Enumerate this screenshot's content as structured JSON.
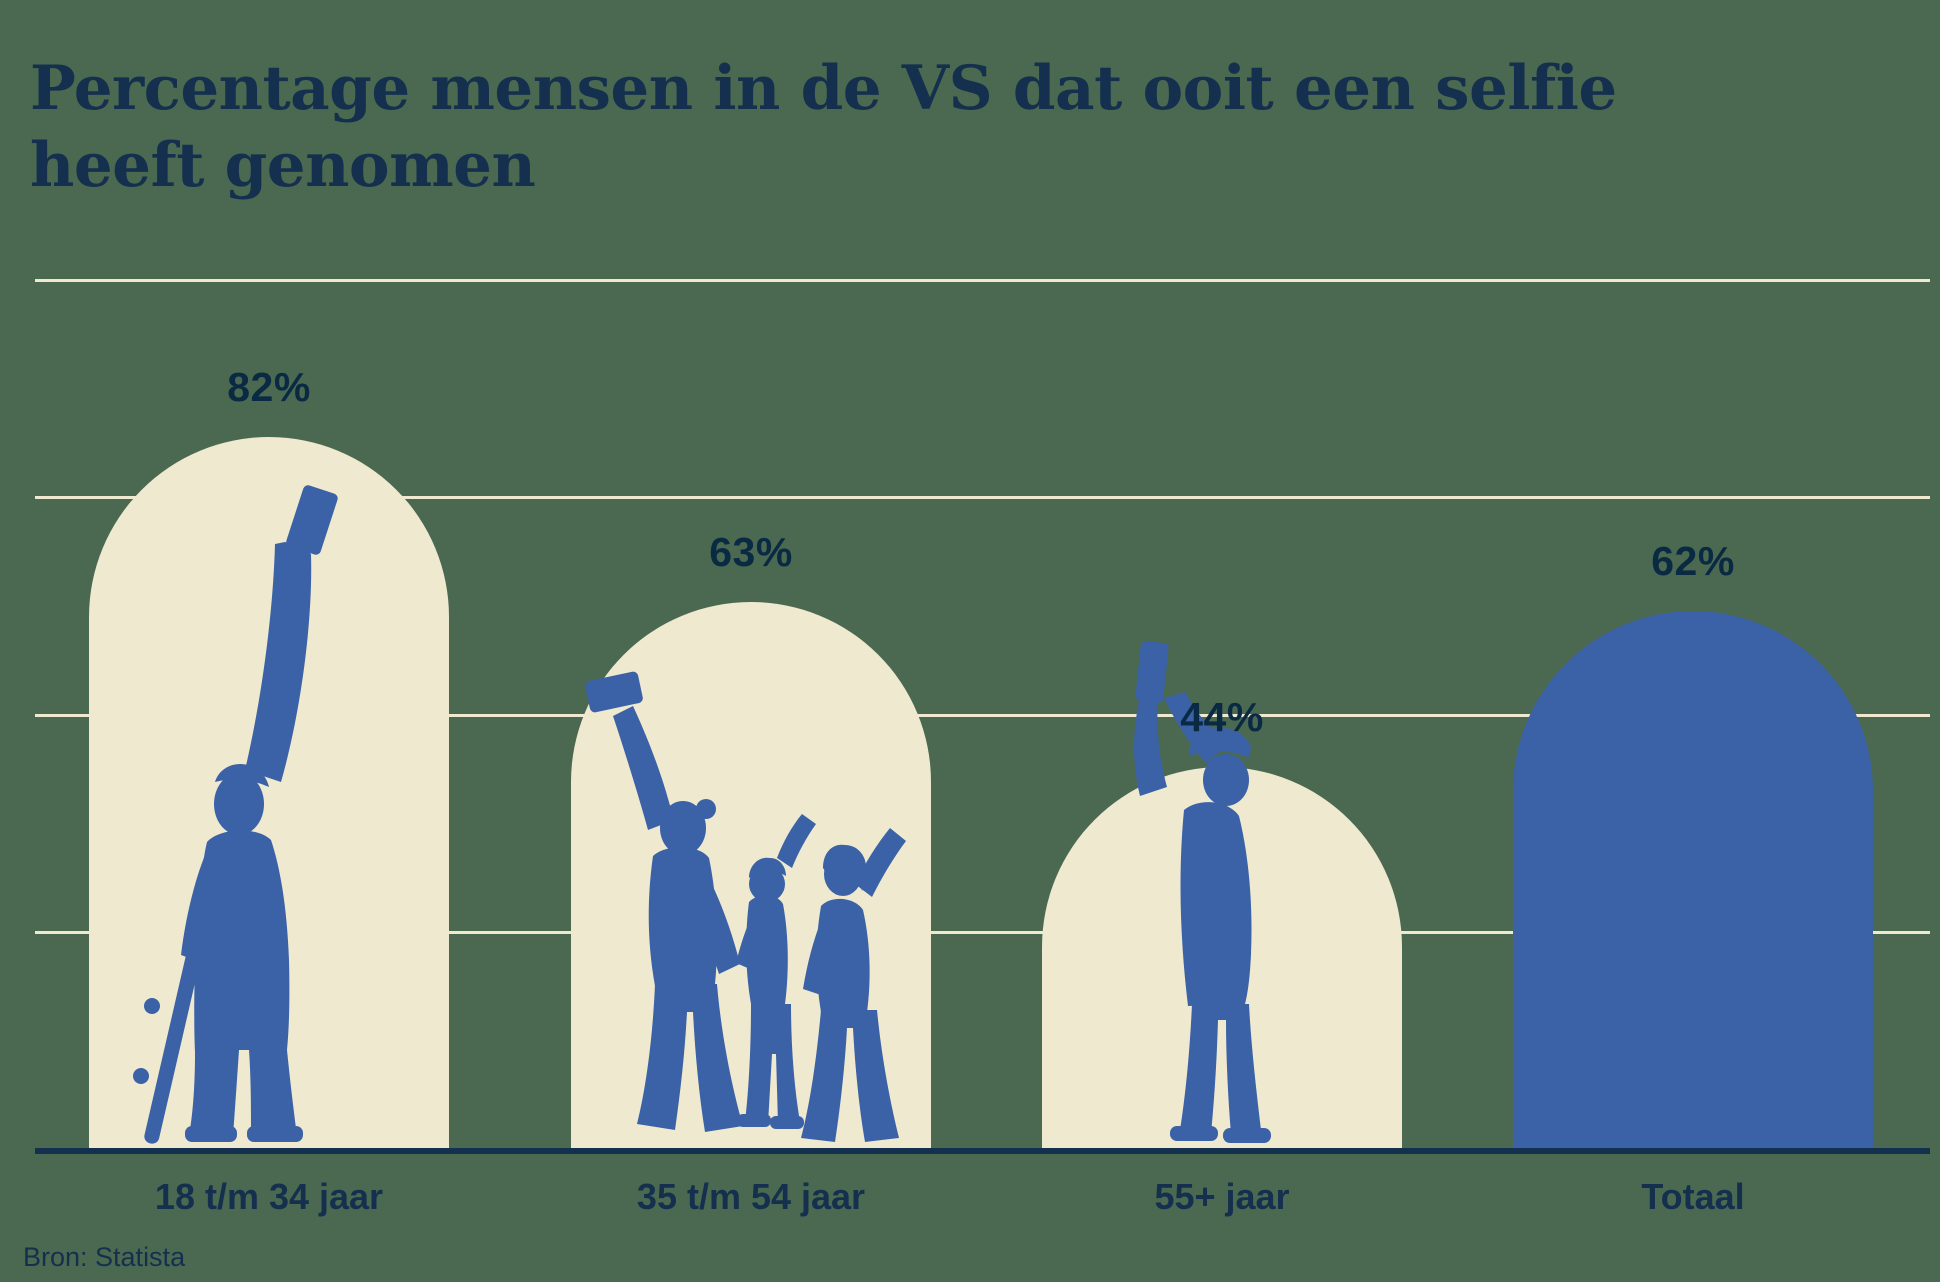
{
  "title_lines": [
    "Percentage mensen in de VS dat ooit een selfie",
    "heeft genomen"
  ],
  "source": "Bron: Statista",
  "chart_data": {
    "type": "bar",
    "title": "Percentage mensen in de VS dat ooit een selfie heeft genomen",
    "categories": [
      "18 t/m 34 jaar",
      "35 t/m 54 jaar",
      "55+ jaar",
      "Totaal"
    ],
    "values": [
      82,
      63,
      44,
      62
    ],
    "value_labels": [
      "82%",
      "63%",
      "44%",
      "62%"
    ],
    "unit": "%",
    "ylim": [
      0,
      100
    ],
    "gridlines_pct": [
      25,
      50,
      75,
      100
    ],
    "grid": "horizontal cream lines, no tick labels",
    "legend": "none",
    "xlabel": "",
    "ylabel": "",
    "bar_shape": "arch with semicircular top",
    "bar_colors": [
      "cream",
      "cream",
      "cream",
      "blue"
    ],
    "illustrations": [
      "blue silhouette: young man taking selfie with raised phone, holding skateboard",
      "blue silhouette: parent taking selfie with two children waving",
      "blue silhouette: older man with flat cap holding phone up with both hands",
      "none (solid blue bar)"
    ],
    "source": "Bron: Statista"
  },
  "colors": {
    "background": "#4A6950",
    "bar_cream": "#EFE9D0",
    "bar_blue": "#3B62A7",
    "silhouette_blue": "#3B62A7",
    "gridline": "#EFE9D0",
    "axis": "#13304E",
    "text_navy": "#14304E",
    "value_label": "#0A2A44"
  }
}
